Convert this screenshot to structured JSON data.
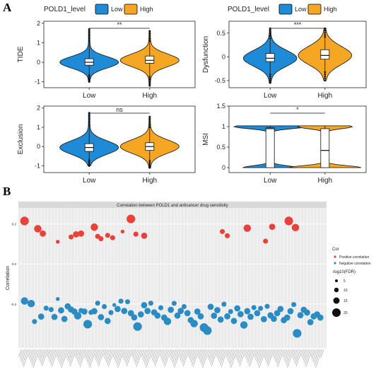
{
  "panel_a": {
    "letter": "A",
    "legend_title": "POLD1_level",
    "legend_low": "Low",
    "legend_high": "High",
    "colors": {
      "low": "#1f8ad6",
      "high": "#f5a623"
    }
  },
  "panel_b": {
    "letter": "B",
    "legend_cor_title": "Cor",
    "legend_pos": "Positive correlation",
    "legend_neg": "Negative correlation",
    "legend_size_title": "-log10(FDR)",
    "size_labels": [
      "5",
      "10",
      "15",
      "20"
    ],
    "colors": {
      "positive": "#e8413a",
      "negative": "#2b8cc4",
      "bg": "#ebebeb"
    }
  },
  "chart_data": [
    {
      "type": "violin",
      "ylabel": "TIDE",
      "categories": [
        "Low",
        "High"
      ],
      "ylim": [
        -1.3,
        2.1
      ],
      "yticks": [
        -1,
        0,
        1,
        2
      ],
      "significance": "**",
      "groups": [
        {
          "name": "Low",
          "median": 0.0,
          "q1": -0.15,
          "q3": 0.18,
          "min": -1.0,
          "max": 1.7
        },
        {
          "name": "High",
          "median": 0.1,
          "q1": -0.05,
          "q3": 0.32,
          "min": -1.2,
          "max": 1.6
        }
      ]
    },
    {
      "type": "violin",
      "ylabel": "Dysfunction",
      "categories": [
        "Low",
        "High"
      ],
      "ylim": [
        -0.65,
        0.75
      ],
      "yticks": [
        -0.5,
        0.0,
        0.5
      ],
      "significance": "***",
      "groups": [
        {
          "name": "Low",
          "median": -0.03,
          "q1": -0.1,
          "q3": 0.07,
          "min": -0.55,
          "max": 0.6
        },
        {
          "name": "High",
          "median": 0.03,
          "q1": -0.05,
          "q3": 0.15,
          "min": -0.5,
          "max": 0.6
        }
      ]
    },
    {
      "type": "violin",
      "ylabel": "Exclusion",
      "categories": [
        "Low",
        "High"
      ],
      "ylim": [
        -1.35,
        2.1
      ],
      "yticks": [
        -1,
        0,
        1,
        2
      ],
      "significance": "ns",
      "groups": [
        {
          "name": "Low",
          "median": -0.05,
          "q1": -0.25,
          "q3": 0.15,
          "min": -1.0,
          "max": 1.75
        },
        {
          "name": "High",
          "median": 0.0,
          "q1": -0.2,
          "q3": 0.2,
          "min": -1.1,
          "max": 1.55
        }
      ]
    },
    {
      "type": "violin",
      "ylabel": "MSI",
      "categories": [
        "Low",
        "High"
      ],
      "ylim": [
        -0.12,
        1.5
      ],
      "yticks": [
        0.0,
        0.5,
        1.0,
        1.5
      ],
      "significance": "*",
      "groups": [
        {
          "name": "Low",
          "median": 0.95,
          "q1": 0.0,
          "q3": 0.97,
          "min": 0.0,
          "max": 1.02
        },
        {
          "name": "High",
          "median": 0.42,
          "q1": 0.0,
          "q3": 0.95,
          "min": 0.0,
          "max": 1.02
        }
      ]
    },
    {
      "type": "scatter",
      "title": "Correlation between POLD1 and anticancer drug sensitivity",
      "ylabel": "Correlation",
      "ylim": [
        -0.42,
        0.28
      ],
      "yticks": [
        -0.2,
        0.0,
        0.2
      ],
      "x_label_note": "drug names along x-axis (illegible at source resolution)",
      "positive": [
        {
          "i": 2,
          "y": 0.215,
          "size": 6
        },
        {
          "i": 10,
          "y": 0.176,
          "size": 5
        },
        {
          "i": 13,
          "y": 0.152,
          "size": 4
        },
        {
          "i": 22,
          "y": 0.111,
          "size": 2
        },
        {
          "i": 30,
          "y": 0.135,
          "size": 3
        },
        {
          "i": 33,
          "y": 0.148,
          "size": 4
        },
        {
          "i": 36,
          "y": 0.152,
          "size": 4
        },
        {
          "i": 44,
          "y": 0.184,
          "size": 5
        },
        {
          "i": 46,
          "y": 0.138,
          "size": 3
        },
        {
          "i": 48,
          "y": 0.126,
          "size": 3
        },
        {
          "i": 52,
          "y": 0.143,
          "size": 3
        },
        {
          "i": 55,
          "y": 0.131,
          "size": 3
        },
        {
          "i": 61,
          "y": 0.162,
          "size": 2
        },
        {
          "i": 66,
          "y": 0.225,
          "size": 6
        },
        {
          "i": 69,
          "y": 0.149,
          "size": 3
        },
        {
          "i": 74,
          "y": 0.141,
          "size": 4
        },
        {
          "i": 121,
          "y": 0.162,
          "size": 3
        },
        {
          "i": 124,
          "y": 0.141,
          "size": 3
        },
        {
          "i": 136,
          "y": 0.179,
          "size": 5
        },
        {
          "i": 147,
          "y": 0.114,
          "size": 3
        },
        {
          "i": 151,
          "y": 0.186,
          "size": 4
        },
        {
          "i": 161,
          "y": 0.215,
          "size": 6
        },
        {
          "i": 165,
          "y": 0.182,
          "size": 5
        }
      ],
      "negative": [
        {
          "i": 2,
          "y": -0.185,
          "size": 5
        },
        {
          "i": 6,
          "y": -0.198,
          "size": 5
        },
        {
          "i": 8,
          "y": -0.288,
          "size": 3
        },
        {
          "i": 12,
          "y": -0.263,
          "size": 4
        },
        {
          "i": 15,
          "y": -0.221,
          "size": 3
        },
        {
          "i": 18,
          "y": -0.228,
          "size": 3
        },
        {
          "i": 20,
          "y": -0.265,
          "size": 4
        },
        {
          "i": 22,
          "y": -0.175,
          "size": 2
        },
        {
          "i": 24,
          "y": -0.232,
          "size": 4
        },
        {
          "i": 26,
          "y": -0.275,
          "size": 4
        },
        {
          "i": 28,
          "y": -0.212,
          "size": 4
        },
        {
          "i": 30,
          "y": -0.228,
          "size": 4
        },
        {
          "i": 32,
          "y": -0.238,
          "size": 4
        },
        {
          "i": 34,
          "y": -0.259,
          "size": 5
        },
        {
          "i": 36,
          "y": -0.233,
          "size": 3
        },
        {
          "i": 38,
          "y": -0.238,
          "size": 4
        },
        {
          "i": 40,
          "y": -0.301,
          "size": 6
        },
        {
          "i": 42,
          "y": -0.242,
          "size": 3
        },
        {
          "i": 44,
          "y": -0.236,
          "size": 4
        },
        {
          "i": 46,
          "y": -0.196,
          "size": 3
        },
        {
          "i": 48,
          "y": -0.266,
          "size": 4
        },
        {
          "i": 50,
          "y": -0.213,
          "size": 3
        },
        {
          "i": 52,
          "y": -0.285,
          "size": 4
        },
        {
          "i": 54,
          "y": -0.243,
          "size": 3
        },
        {
          "i": 56,
          "y": -0.205,
          "size": 2
        },
        {
          "i": 58,
          "y": -0.225,
          "size": 4
        },
        {
          "i": 60,
          "y": -0.186,
          "size": 3
        },
        {
          "i": 62,
          "y": -0.235,
          "size": 4
        },
        {
          "i": 64,
          "y": -0.189,
          "size": 3
        },
        {
          "i": 66,
          "y": -0.246,
          "size": 4
        },
        {
          "i": 68,
          "y": -0.267,
          "size": 4
        },
        {
          "i": 70,
          "y": -0.313,
          "size": 6
        },
        {
          "i": 72,
          "y": -0.252,
          "size": 4
        },
        {
          "i": 74,
          "y": -0.206,
          "size": 4
        },
        {
          "i": 76,
          "y": -0.235,
          "size": 4
        },
        {
          "i": 78,
          "y": -0.196,
          "size": 3
        },
        {
          "i": 80,
          "y": -0.242,
          "size": 4
        },
        {
          "i": 82,
          "y": -0.258,
          "size": 4
        },
        {
          "i": 84,
          "y": -0.219,
          "size": 3
        },
        {
          "i": 86,
          "y": -0.268,
          "size": 4
        },
        {
          "i": 88,
          "y": -0.287,
          "size": 5
        },
        {
          "i": 90,
          "y": -0.229,
          "size": 4
        },
        {
          "i": 92,
          "y": -0.197,
          "size": 3
        },
        {
          "i": 94,
          "y": -0.258,
          "size": 4
        },
        {
          "i": 96,
          "y": -0.235,
          "size": 4
        },
        {
          "i": 98,
          "y": -0.213,
          "size": 3
        },
        {
          "i": 100,
          "y": -0.246,
          "size": 4
        },
        {
          "i": 102,
          "y": -0.281,
          "size": 4
        },
        {
          "i": 104,
          "y": -0.298,
          "size": 5
        },
        {
          "i": 106,
          "y": -0.238,
          "size": 4
        },
        {
          "i": 108,
          "y": -0.262,
          "size": 4
        },
        {
          "i": 110,
          "y": -0.318,
          "size": 6
        },
        {
          "i": 112,
          "y": -0.333,
          "size": 6
        },
        {
          "i": 114,
          "y": -0.214,
          "size": 4
        },
        {
          "i": 116,
          "y": -0.259,
          "size": 4
        },
        {
          "i": 118,
          "y": -0.231,
          "size": 4
        },
        {
          "i": 120,
          "y": -0.278,
          "size": 4
        },
        {
          "i": 122,
          "y": -0.201,
          "size": 3
        },
        {
          "i": 124,
          "y": -0.262,
          "size": 4
        },
        {
          "i": 126,
          "y": -0.238,
          "size": 3
        },
        {
          "i": 128,
          "y": -0.285,
          "size": 4
        },
        {
          "i": 130,
          "y": -0.222,
          "size": 4
        },
        {
          "i": 132,
          "y": -0.251,
          "size": 4
        },
        {
          "i": 134,
          "y": -0.305,
          "size": 5
        },
        {
          "i": 136,
          "y": -0.236,
          "size": 4
        },
        {
          "i": 138,
          "y": -0.264,
          "size": 4
        },
        {
          "i": 140,
          "y": -0.218,
          "size": 3
        },
        {
          "i": 142,
          "y": -0.246,
          "size": 4
        },
        {
          "i": 144,
          "y": -0.222,
          "size": 3
        },
        {
          "i": 146,
          "y": -0.276,
          "size": 4
        },
        {
          "i": 148,
          "y": -0.212,
          "size": 3
        },
        {
          "i": 150,
          "y": -0.257,
          "size": 4
        },
        {
          "i": 152,
          "y": -0.274,
          "size": 4
        },
        {
          "i": 154,
          "y": -0.246,
          "size": 4
        },
        {
          "i": 156,
          "y": -0.225,
          "size": 4
        },
        {
          "i": 158,
          "y": -0.281,
          "size": 4
        },
        {
          "i": 160,
          "y": -0.268,
          "size": 4
        },
        {
          "i": 162,
          "y": -0.236,
          "size": 4
        },
        {
          "i": 164,
          "y": -0.203,
          "size": 3
        },
        {
          "i": 166,
          "y": -0.347,
          "size": 6
        },
        {
          "i": 168,
          "y": -0.256,
          "size": 4
        },
        {
          "i": 170,
          "y": -0.229,
          "size": 4
        },
        {
          "i": 172,
          "y": -0.243,
          "size": 4
        },
        {
          "i": 174,
          "y": -0.291,
          "size": 4
        },
        {
          "i": 176,
          "y": -0.262,
          "size": 4
        },
        {
          "i": 178,
          "y": -0.252,
          "size": 4
        },
        {
          "i": 180,
          "y": -0.268,
          "size": 4
        }
      ]
    }
  ]
}
